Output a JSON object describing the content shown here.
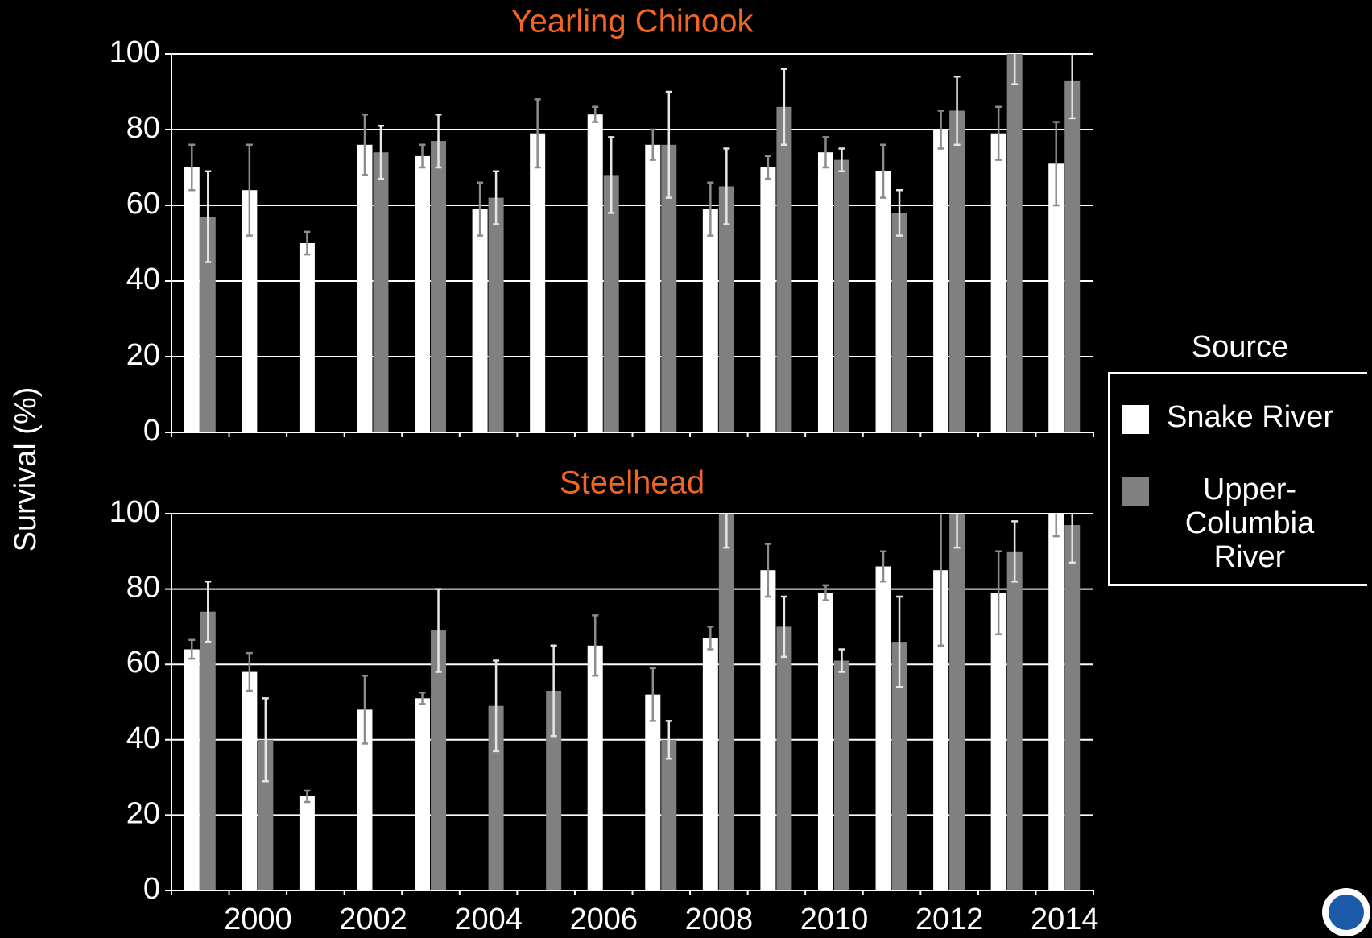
{
  "y_label": "Survival (%)",
  "legend_title": "Source",
  "chart_data": [
    {
      "type": "bar",
      "title": "Yearling Chinook",
      "ylim": [
        0,
        100
      ],
      "yticks": [
        0,
        20,
        40,
        60,
        80,
        100
      ],
      "grid": true,
      "series": [
        {
          "name": "Snake River",
          "color": "#ffffff",
          "errorbar_color": "#8c8c8c",
          "values": [
            70,
            64,
            50,
            76,
            73,
            59,
            79,
            84,
            76,
            59,
            70,
            74,
            69,
            80,
            79,
            71
          ],
          "errors": [
            6,
            12,
            3,
            8,
            3,
            7,
            9,
            2,
            4,
            7,
            3,
            4,
            7,
            5,
            7,
            11
          ]
        },
        {
          "name": "Upper-Columbia River",
          "color": "#808080",
          "errorbar_color": "#e6e6e6",
          "values": [
            57,
            null,
            null,
            74,
            77,
            62,
            null,
            68,
            76,
            65,
            86,
            72,
            58,
            85,
            100,
            93
          ],
          "errors": [
            12,
            null,
            null,
            7,
            7,
            7,
            null,
            10,
            14,
            10,
            10,
            3,
            6,
            9,
            8,
            10
          ]
        }
      ]
    },
    {
      "type": "bar",
      "title": "Steelhead",
      "categories": [
        null,
        "2000",
        null,
        "2002",
        null,
        "2004",
        null,
        "2006",
        null,
        "2008",
        null,
        "2010",
        null,
        "2012",
        null,
        "2014"
      ],
      "ylim": [
        0,
        100
      ],
      "yticks": [
        0,
        20,
        40,
        60,
        80,
        100
      ],
      "grid": true,
      "series": [
        {
          "name": "Snake River",
          "color": "#ffffff",
          "errorbar_color": "#8c8c8c",
          "values": [
            64,
            58,
            25,
            48,
            51,
            null,
            null,
            65,
            52,
            67,
            85,
            79,
            86,
            85,
            79,
            100
          ],
          "errors": [
            2.5,
            5,
            1.5,
            9,
            1.5,
            null,
            null,
            8,
            7,
            3,
            7,
            2,
            4,
            20,
            11,
            6
          ]
        },
        {
          "name": "Upper-Columbia River",
          "color": "#808080",
          "errorbar_color": "#e6e6e6",
          "values": [
            74,
            40,
            null,
            null,
            69,
            49,
            53,
            null,
            40,
            100,
            70,
            61,
            66,
            100,
            90,
            97
          ],
          "errors": [
            8,
            11,
            null,
            null,
            11,
            12,
            12,
            null,
            5,
            9,
            8,
            3,
            12,
            9,
            8,
            10
          ]
        }
      ]
    }
  ]
}
